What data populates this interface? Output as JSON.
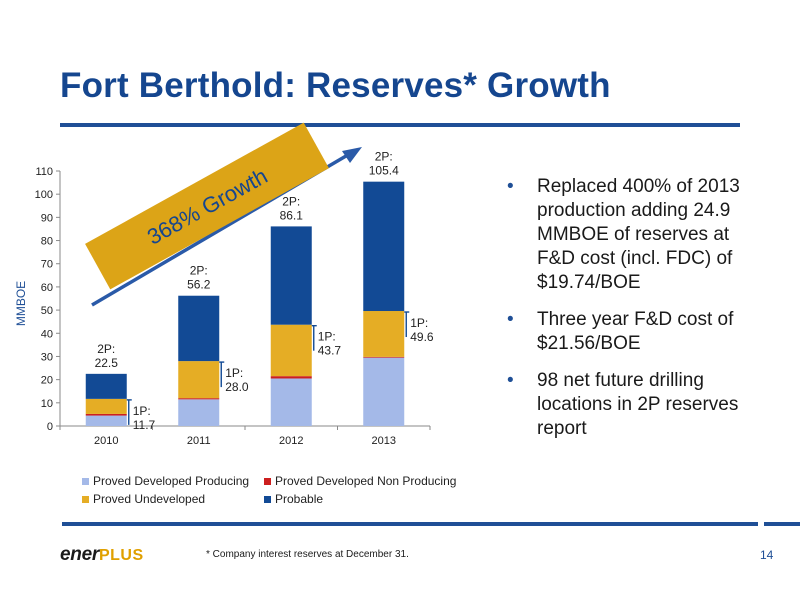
{
  "title": "Fort Berthold:  Reserves* Growth",
  "bullets": [
    "Replaced 400% of 2013 production adding 24.9 MMBOE of reserves at F&D cost (incl. FDC) of $19.74/BOE",
    "Three year F&D cost of $21.56/BOE",
    "98 net future drilling locations in 2P reserves report"
  ],
  "bullet_glyph": "•",
  "growth_banner": "368% Growth",
  "footnote": "* Company interest reserves at December 31.",
  "page_number": "14",
  "logo": {
    "text": "ener",
    "plus": "PLUS"
  },
  "colors": {
    "title": "#15468f",
    "rule": "#1f4f96",
    "pdp": "#a4b9e8",
    "pdnp": "#cc1f1f",
    "pud": "#e5ad25",
    "probable": "#124a95",
    "banner": "#dca417",
    "arrow": "#2a5aa8"
  },
  "chart_data": {
    "type": "bar",
    "stacked": true,
    "categories": [
      "2010",
      "2011",
      "2012",
      "2013"
    ],
    "ylabel": "MMBOE",
    "xlabel": "",
    "ylim": [
      0,
      110
    ],
    "yticks": [
      0,
      10,
      20,
      30,
      40,
      50,
      60,
      70,
      80,
      90,
      100,
      110
    ],
    "grid": false,
    "legend_position": "bottom",
    "series": [
      {
        "name": "Proved Developed Producing",
        "values": [
          4.5,
          11.5,
          20.5,
          29.5
        ]
      },
      {
        "name": "Proved Developed Non Producing",
        "values": [
          0.7,
          0.5,
          1.0,
          0.3
        ]
      },
      {
        "name": "Proved Undeveloped",
        "values": [
          6.5,
          16.0,
          22.2,
          19.8
        ]
      },
      {
        "name": "Probable",
        "values": [
          10.8,
          28.2,
          42.4,
          55.8
        ]
      }
    ],
    "annotations_2p": [
      {
        "label": "2P:",
        "value": "22.5"
      },
      {
        "label": "2P:",
        "value": "56.2"
      },
      {
        "label": "2P:",
        "value": "86.1"
      },
      {
        "label": "2P:",
        "value": "105.4"
      }
    ],
    "annotations_1p": [
      {
        "label": "1P:",
        "value": "11.7"
      },
      {
        "label": "1P:",
        "value": "28.0"
      },
      {
        "label": "1P:",
        "value": "43.7"
      },
      {
        "label": "1P:",
        "value": "49.6"
      }
    ]
  }
}
